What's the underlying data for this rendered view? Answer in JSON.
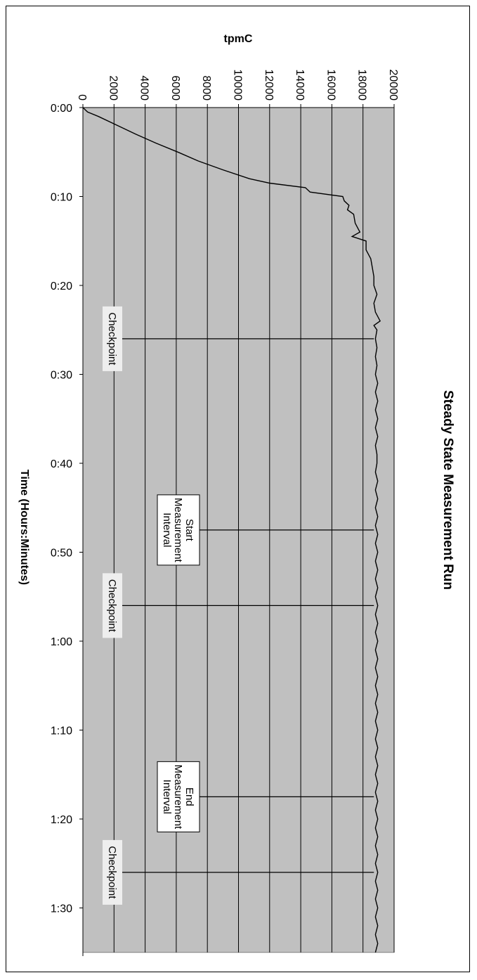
{
  "chart_data": {
    "type": "line",
    "title": "Steady State Measurement Run",
    "xlabel": "Time (Hours:Minutes)",
    "ylabel": "tpmC",
    "orientation": "rotated-90-clockwise",
    "xlim_minutes": [
      0,
      95
    ],
    "ylim": [
      0,
      20000
    ],
    "y_ticks": [
      "0",
      "2000",
      "4000",
      "6000",
      "8000",
      "10000",
      "12000",
      "14000",
      "16000",
      "18000",
      "20000"
    ],
    "x_ticks": [
      {
        "minutes": 0,
        "label": "0:00"
      },
      {
        "minutes": 10,
        "label": "0:10"
      },
      {
        "minutes": 20,
        "label": "0:20"
      },
      {
        "minutes": 30,
        "label": "0:30"
      },
      {
        "minutes": 40,
        "label": "0:40"
      },
      {
        "minutes": 50,
        "label": "0:50"
      },
      {
        "minutes": 60,
        "label": "1:00"
      },
      {
        "minutes": 70,
        "label": "1:10"
      },
      {
        "minutes": 80,
        "label": "1:20"
      },
      {
        "minutes": 90,
        "label": "1:30"
      }
    ],
    "grid": true,
    "series": [
      {
        "values_minutes": [
          0,
          0.5,
          1,
          2,
          3,
          4,
          5,
          6,
          7,
          8,
          8.5,
          9,
          9.5,
          10,
          10.5,
          11,
          11.5,
          12,
          13,
          14,
          14.5,
          15,
          16,
          17,
          18,
          19,
          20,
          21,
          21.5,
          22,
          23,
          24,
          24.5,
          25,
          26,
          27,
          28,
          29,
          30,
          31,
          32,
          33,
          34,
          35,
          36,
          37,
          38,
          39,
          40,
          41,
          42,
          43,
          44,
          45,
          46,
          47,
          48,
          49,
          50,
          51,
          52,
          53,
          54,
          55,
          56,
          57,
          58,
          59,
          60,
          61,
          62,
          63,
          64,
          65,
          66,
          67,
          68,
          69,
          70,
          71,
          72,
          73,
          74,
          75,
          76,
          77,
          78,
          79,
          80,
          81,
          82,
          83,
          84,
          85,
          86,
          87,
          88,
          89,
          90,
          91,
          92,
          93,
          94,
          95
        ],
        "values_tpmC": [
          0,
          300,
          1000,
          2200,
          3400,
          4700,
          6100,
          7400,
          9000,
          10700,
          12000,
          14300,
          14600,
          16700,
          16800,
          17100,
          17000,
          17400,
          17500,
          17800,
          17300,
          18200,
          18200,
          18500,
          18600,
          18700,
          18700,
          18900,
          18800,
          18700,
          18800,
          19100,
          18700,
          18900,
          18800,
          18900,
          18800,
          18900,
          18800,
          18950,
          18800,
          18950,
          18800,
          18950,
          18800,
          18950,
          18800,
          18900,
          18900,
          18800,
          18950,
          18800,
          18950,
          18800,
          18950,
          18800,
          18950,
          18800,
          18950,
          18800,
          18950,
          18800,
          18950,
          18800,
          18950,
          18800,
          18950,
          18800,
          18950,
          18800,
          18950,
          18800,
          18950,
          18800,
          18950,
          18800,
          18950,
          18800,
          18950,
          18800,
          18950,
          18800,
          18950,
          18800,
          18950,
          18800,
          18950,
          18800,
          18950,
          18800,
          18950,
          18800,
          18950,
          18800,
          18950,
          18800,
          18950,
          18800,
          18950,
          18800,
          18950,
          18800,
          18950,
          18800
        ]
      }
    ],
    "annotations": [
      {
        "minutes": 26,
        "tpmC_from": 2000,
        "tpmC_to": 18700,
        "label_lines": [
          "Checkpoint"
        ],
        "boxed": false
      },
      {
        "minutes": 47.5,
        "tpmC_from": 6100,
        "tpmC_to": 18700,
        "label_lines": [
          "Start",
          "Measurement",
          "Interval"
        ],
        "boxed": true
      },
      {
        "minutes": 56,
        "tpmC_from": 2000,
        "tpmC_to": 18700,
        "label_lines": [
          "Checkpoint"
        ],
        "boxed": false
      },
      {
        "minutes": 77.5,
        "tpmC_from": 6100,
        "tpmC_to": 18700,
        "label_lines": [
          "End",
          "Measurement",
          "Interval"
        ],
        "boxed": true
      },
      {
        "minutes": 86,
        "tpmC_from": 2000,
        "tpmC_to": 18700,
        "label_lines": [
          "Checkpoint"
        ],
        "boxed": false
      }
    ],
    "colors": {
      "plot_background": "#c0c0c0",
      "line": "#000000",
      "grid": "#000000",
      "label_background": "#eeeeee"
    }
  }
}
